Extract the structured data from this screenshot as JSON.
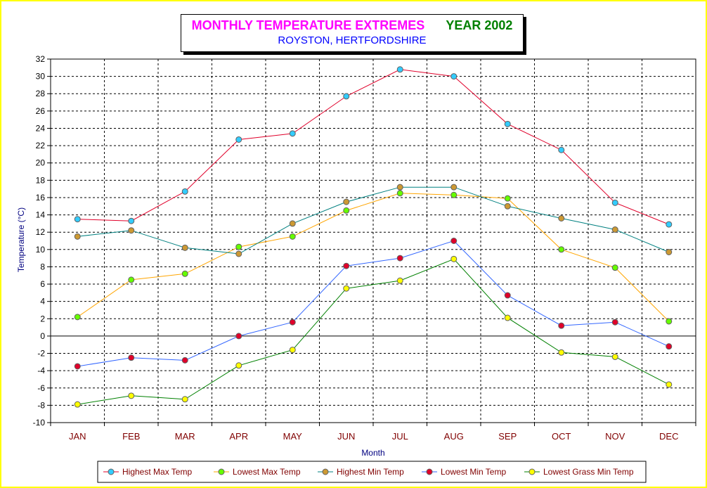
{
  "title": "MONTHLY TEMPERATURE EXTREMES",
  "year_label": "YEAR 2002",
  "subtitle": "ROYSTON, HERTFORDSHIRE",
  "chart_data": {
    "type": "line",
    "title": "MONTHLY TEMPERATURE EXTREMES",
    "subtitle": "ROYSTON, HERTFORDSHIRE",
    "xlabel": "Month",
    "ylabel": "Temperature (°C)",
    "ylim": [
      -10,
      32
    ],
    "ytick_step": 2,
    "grid": true,
    "legend_position": "bottom",
    "categories": [
      "JAN",
      "FEB",
      "MAR",
      "APR",
      "MAY",
      "JUN",
      "JUL",
      "AUG",
      "SEP",
      "OCT",
      "NOV",
      "DEC"
    ],
    "series": [
      {
        "name": "Highest Max Temp",
        "line_color": "#e0002a",
        "marker_color": "#33ccff",
        "values": [
          13.5,
          13.3,
          16.7,
          22.7,
          23.4,
          27.7,
          30.8,
          30.0,
          24.5,
          21.5,
          15.4,
          12.9
        ]
      },
      {
        "name": "Lowest Max Temp",
        "line_color": "#ffa500",
        "marker_color": "#66ff00",
        "values": [
          2.2,
          6.5,
          7.2,
          10.3,
          11.5,
          14.5,
          16.5,
          16.3,
          15.9,
          10.0,
          7.9,
          1.7
        ]
      },
      {
        "name": "Highest Min Temp",
        "line_color": "#008080",
        "marker_color": "#cc9933",
        "values": [
          11.5,
          12.2,
          10.2,
          9.5,
          13.0,
          15.5,
          17.2,
          17.2,
          15.0,
          13.6,
          12.3,
          9.7
        ]
      },
      {
        "name": "Lowest Min Temp",
        "line_color": "#3366ff",
        "marker_color": "#e0002a",
        "values": [
          -3.5,
          -2.5,
          -2.8,
          0.0,
          1.6,
          8.1,
          9.0,
          11.0,
          4.7,
          1.2,
          1.6,
          -1.2
        ]
      },
      {
        "name": "Lowest Grass Min Temp",
        "line_color": "#008000",
        "marker_color": "#ffff00",
        "values": [
          -7.9,
          -6.9,
          -7.3,
          -3.4,
          -1.6,
          5.5,
          6.4,
          8.9,
          2.1,
          -1.9,
          -2.4,
          -5.6
        ]
      }
    ]
  }
}
